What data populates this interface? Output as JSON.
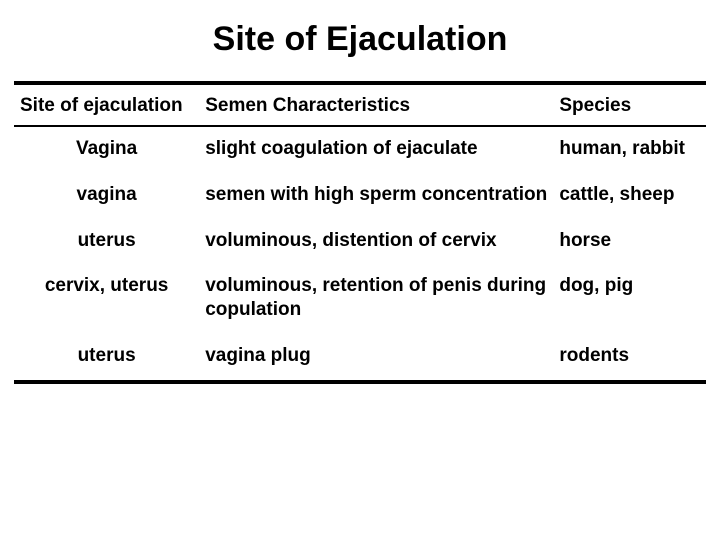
{
  "title": "Site of Ejaculation",
  "table": {
    "columns": [
      "Site of ejaculation",
      "Semen Characteristics",
      "Species"
    ],
    "rows": [
      {
        "site": "Vagina",
        "char": "slight coagulation of ejaculate",
        "species": "human, rabbit"
      },
      {
        "site": "vagina",
        "char": "semen with high sperm concentration",
        "species": "cattle, sheep"
      },
      {
        "site": "uterus",
        "char": "voluminous, distention of cervix",
        "species": "horse"
      },
      {
        "site": "cervix, uterus",
        "char": "voluminous, retention of penis during copulation",
        "species": "dog, pig"
      },
      {
        "site": "uterus",
        "char": "vagina plug",
        "species": "rodents"
      }
    ],
    "colors": {
      "text": "#000000",
      "background": "#ffffff",
      "rule": "#000000"
    },
    "fontsize_title": 34,
    "fontsize_body": 19
  }
}
